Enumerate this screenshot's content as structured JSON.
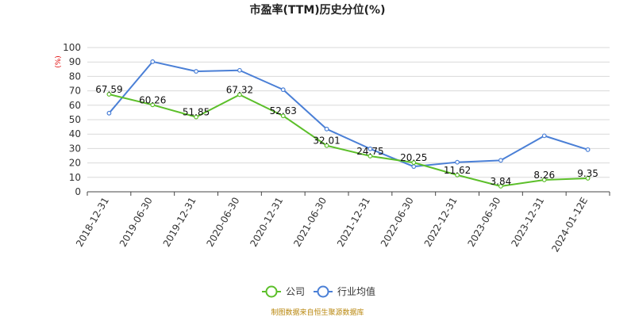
{
  "chart_data": {
    "type": "line",
    "title": "市盈率(TTM)历史分位(%)",
    "ylabel": "(%)",
    "ylim": [
      0,
      100
    ],
    "yticks": [
      0,
      10,
      20,
      30,
      40,
      50,
      60,
      70,
      80,
      90,
      100
    ],
    "grid": true,
    "legend_position": "bottom-center",
    "categories": [
      "2018-12-31",
      "2019-06-30",
      "2019-12-31",
      "2020-06-30",
      "2020-12-31",
      "2021-06-30",
      "2021-12-31",
      "2022-06-30",
      "2022-12-31",
      "2023-06-30",
      "2023-12-31",
      "2024-01-12E"
    ],
    "series": [
      {
        "name": "公司",
        "color": "#5cbf2a",
        "values": [
          67.59,
          60.26,
          51.85,
          67.32,
          52.63,
          32.01,
          24.75,
          20.25,
          11.62,
          3.84,
          8.26,
          9.35
        ],
        "labels": [
          "67.59",
          "60.26",
          "51.85",
          "67.32",
          "52.63",
          "32.01",
          "24.75",
          "20.25",
          "11.62",
          "3.84",
          "8.26",
          "9.35"
        ]
      },
      {
        "name": "行业均值",
        "color": "#4a7fd6",
        "values": [
          54.5,
          90.2,
          83.5,
          84.2,
          70.8,
          43.5,
          29.8,
          17.5,
          20.5,
          21.8,
          38.8,
          29.2
        ]
      }
    ]
  },
  "footer": {
    "source": "制图数据来自恒生聚源数据库"
  }
}
